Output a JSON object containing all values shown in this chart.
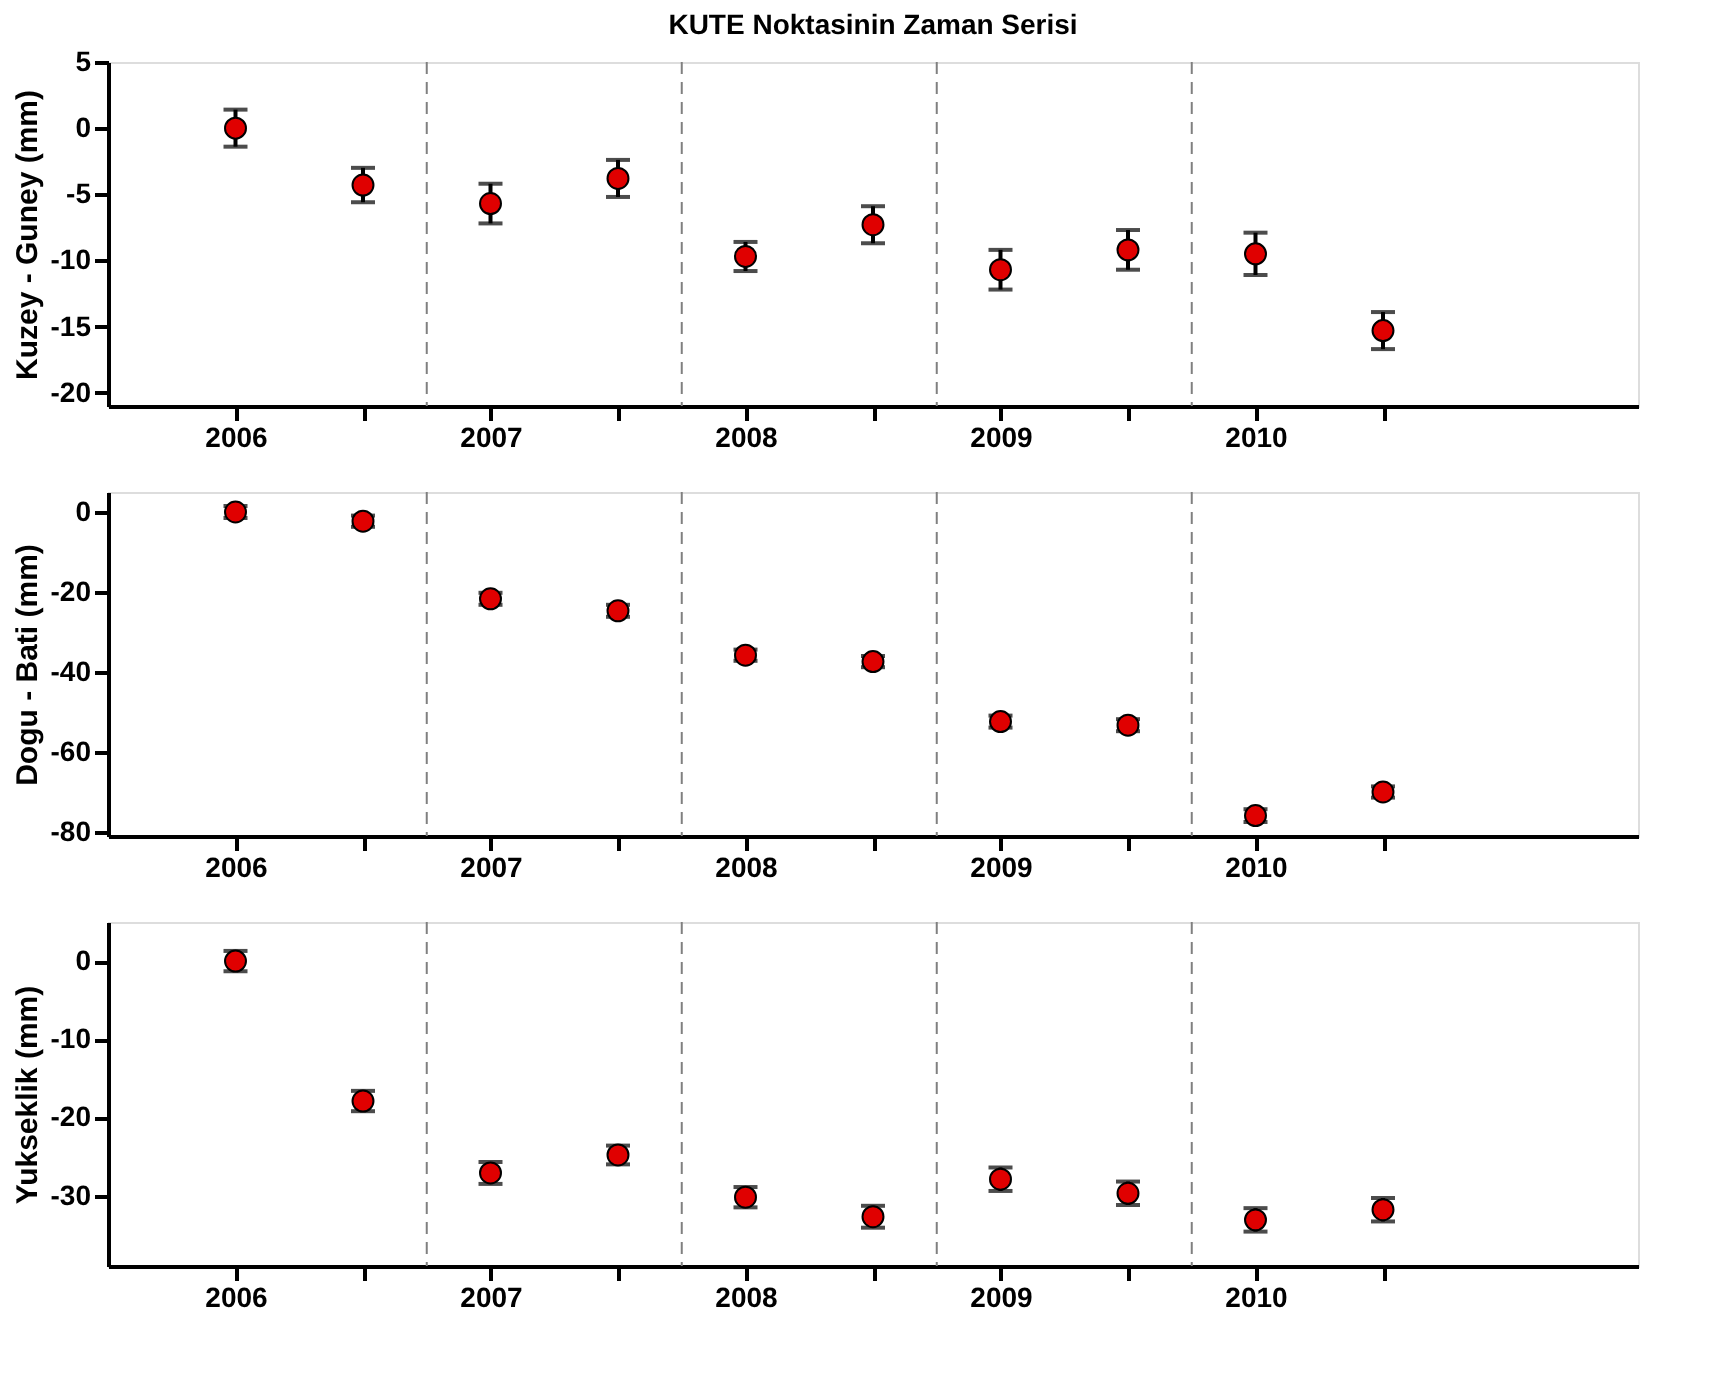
{
  "chart_data": [
    {
      "type": "scatter",
      "title": "KUTE Noktasinin Zaman Serisi",
      "ylabel": "Kuzey - Guney (mm)",
      "x": [
        2006,
        2006.5,
        2007,
        2007.5,
        2008,
        2008.5,
        2009,
        2009.5,
        2010,
        2010.5
      ],
      "series": [
        {
          "color": "#e00000",
          "values": [
            0,
            -4.3,
            -5.7,
            -3.8,
            -9.7,
            -7.3,
            -10.7,
            -9.2,
            -9.5,
            -15.3
          ],
          "errors": [
            1.4,
            1.3,
            1.5,
            1.4,
            1.1,
            1.4,
            1.5,
            1.5,
            1.6,
            1.4
          ]
        }
      ],
      "xlim": [
        2005.5,
        2011.5
      ],
      "xticks": [
        2006,
        {
          "value": 2006.5,
          "label": null
        },
        2007,
        {
          "value": 2007.5,
          "label": null
        },
        2008,
        {
          "value": 2008.5,
          "label": null
        },
        2009,
        {
          "value": 2009.5,
          "label": null
        },
        2010,
        {
          "value": 2010.5,
          "label": null
        }
      ],
      "ylim": [
        -21,
        5
      ],
      "yticks": [
        5,
        0,
        -5,
        -10,
        -15,
        -20
      ],
      "marker": "circle",
      "grid": false,
      "ref_lines": [
        {
          "axis": "x",
          "value": 2006.75,
          "color": "#808080",
          "line_style": "dashed"
        },
        {
          "axis": "x",
          "value": 2007.75,
          "color": "#808080",
          "line_style": "dashed"
        },
        {
          "axis": "x",
          "value": 2008.75,
          "color": "#808080",
          "line_style": "dashed"
        },
        {
          "axis": "x",
          "value": 2009.75,
          "color": "#808080",
          "line_style": "dashed"
        }
      ]
    },
    {
      "type": "scatter",
      "ylabel": "Dogu - Bati (mm)",
      "x": [
        2006,
        2006.5,
        2007,
        2007.5,
        2008,
        2008.5,
        2009,
        2009.5,
        2010,
        2010.5
      ],
      "series": [
        {
          "color": "#e00000",
          "values": [
            0,
            -2.3,
            -21.7,
            -24.7,
            -35.8,
            -37.4,
            -52.4,
            -53.3,
            -75.9,
            -70
          ],
          "errors": [
            1.5,
            1.4,
            1.5,
            1.5,
            1.4,
            1.4,
            1.5,
            1.5,
            1.6,
            1.4
          ]
        }
      ],
      "xlim": [
        2005.5,
        2011.5
      ],
      "xticks": [
        2006,
        {
          "value": 2006.5,
          "label": null
        },
        2007,
        {
          "value": 2007.5,
          "label": null
        },
        2008,
        {
          "value": 2008.5,
          "label": null
        },
        2009,
        {
          "value": 2009.5,
          "label": null
        },
        2010,
        {
          "value": 2010.5,
          "label": null
        }
      ],
      "ylim": [
        -81,
        5
      ],
      "yticks": [
        0,
        -20,
        -40,
        -60,
        -80
      ],
      "marker": "circle",
      "grid": false,
      "ref_lines": [
        {
          "axis": "x",
          "value": 2006.75,
          "color": "#808080",
          "line_style": "dashed"
        },
        {
          "axis": "x",
          "value": 2007.75,
          "color": "#808080",
          "line_style": "dashed"
        },
        {
          "axis": "x",
          "value": 2008.75,
          "color": "#808080",
          "line_style": "dashed"
        },
        {
          "axis": "x",
          "value": 2009.75,
          "color": "#808080",
          "line_style": "dashed"
        }
      ]
    },
    {
      "type": "scatter",
      "ylabel": "Yukseklik (mm)",
      "x": [
        2006,
        2006.5,
        2007,
        2007.5,
        2008,
        2008.5,
        2009,
        2009.5,
        2010,
        2010.5
      ],
      "series": [
        {
          "color": "#e00000",
          "values": [
            0,
            -17.9,
            -27.1,
            -24.8,
            -30.2,
            -32.7,
            -27.9,
            -29.7,
            -33.1,
            -31.8
          ],
          "errors": [
            1.3,
            1.3,
            1.4,
            1.2,
            1.3,
            1.4,
            1.5,
            1.5,
            1.5,
            1.5
          ]
        }
      ],
      "xlim": [
        2005.5,
        2011.5
      ],
      "xticks": [
        2006,
        {
          "value": 2006.5,
          "label": null
        },
        2007,
        {
          "value": 2007.5,
          "label": null
        },
        2008,
        {
          "value": 2008.5,
          "label": null
        },
        2009,
        {
          "value": 2009.5,
          "label": null
        },
        2010,
        {
          "value": 2010.5,
          "label": null
        }
      ],
      "ylim": [
        -39,
        5
      ],
      "yticks": [
        0,
        -10,
        -20,
        -30
      ],
      "marker": "circle",
      "grid": false,
      "ref_lines": [
        {
          "axis": "x",
          "value": 2006.75,
          "color": "#808080",
          "line_style": "dashed"
        },
        {
          "axis": "x",
          "value": 2007.75,
          "color": "#808080",
          "line_style": "dashed"
        },
        {
          "axis": "x",
          "value": 2008.75,
          "color": "#808080",
          "line_style": "dashed"
        },
        {
          "axis": "x",
          "value": 2009.75,
          "color": "#808080",
          "line_style": "dashed"
        }
      ]
    }
  ]
}
